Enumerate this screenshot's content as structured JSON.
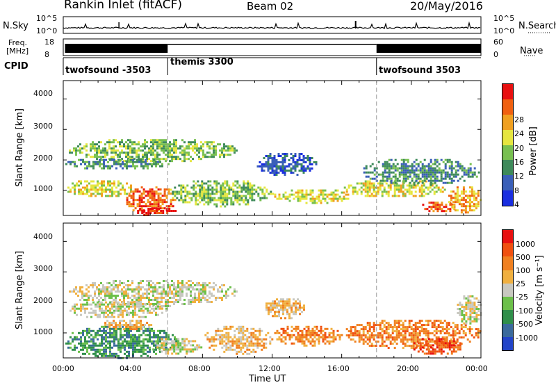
{
  "header": {
    "station": "Rankin Inlet (fitACF)",
    "beam": "Beam 02",
    "date": "20/May/2016"
  },
  "noise_panel": {
    "left_label": "N.Sky",
    "right_label": "N.Search",
    "left_ticks": [
      "10^5",
      "10^0"
    ],
    "right_ticks": [
      "10^5",
      "10^0"
    ]
  },
  "freq_panel": {
    "left_label_line1": "Freq.",
    "left_label_line2": "[MHz]",
    "right_label": "Nave",
    "left_ticks": [
      "18",
      "8"
    ],
    "right_ticks": [
      "60",
      "0"
    ]
  },
  "cpid_panel": {
    "label": "CPID",
    "segments": [
      {
        "name": "twofsound -3503",
        "start_hour": 0,
        "end_hour": 6
      },
      {
        "name": "themis 3300",
        "start_hour": 6,
        "end_hour": 18
      },
      {
        "name": "twofsound 3503",
        "start_hour": 18,
        "end_hour": 24
      }
    ]
  },
  "x_axis": {
    "label": "Time UT",
    "ticks": [
      "00:00",
      "04:00",
      "08:00",
      "12:00",
      "16:00",
      "20:00",
      "00:00"
    ]
  },
  "power_panel": {
    "ylabel": "Slant Range [km]",
    "yticks": [
      "4000",
      "3000",
      "2000",
      "1000"
    ],
    "colorbar_label": "Power [dB]",
    "colorbar_ticks": [
      "28",
      "24",
      "20",
      "16",
      "12",
      "8",
      "4"
    ]
  },
  "velocity_panel": {
    "ylabel": "Slant Range [km]",
    "yticks": [
      "4000",
      "3000",
      "2000",
      "1000"
    ],
    "colorbar_label": "Velocity [m s⁻¹]",
    "colorbar_ticks": [
      "1000",
      "500",
      "100",
      "25",
      "-25",
      "-100",
      "-500",
      "-1000"
    ]
  },
  "colors": {
    "power": [
      "#1a2ee0",
      "#3a5fb8",
      "#3e8a5a",
      "#78c050",
      "#e6e640",
      "#f0a020",
      "#f06010",
      "#e81010"
    ],
    "velocity": [
      "#2244c8",
      "#3a6a9c",
      "#2f8f4a",
      "#6cc04a",
      "#c8c8c0",
      "#f0b040",
      "#f08020",
      "#f05010",
      "#e81010"
    ]
  },
  "chart_data": {
    "type": "heatmap",
    "x_range_hours": [
      0,
      24
    ],
    "y_range_km": [
      180,
      4600
    ],
    "power_blobs": [
      {
        "h0": 0.2,
        "h1": 10.0,
        "r0": 1950,
        "r1": 2750,
        "level": 3
      },
      {
        "h0": 0.0,
        "h1": 6.0,
        "r0": 1700,
        "r1": 2100,
        "level": 2
      },
      {
        "h0": 0.0,
        "h1": 4.0,
        "r0": 800,
        "r1": 1400,
        "level": 4
      },
      {
        "h0": 3.5,
        "h1": 6.5,
        "r0": 250,
        "r1": 1200,
        "level": 6
      },
      {
        "h0": 4.0,
        "h1": 6.5,
        "r0": 200,
        "r1": 500,
        "level": 7
      },
      {
        "h0": 6.0,
        "h1": 12.0,
        "r0": 500,
        "r1": 1400,
        "level": 3
      },
      {
        "h0": 12.0,
        "h1": 16.5,
        "r0": 600,
        "r1": 1100,
        "level": 4
      },
      {
        "h0": 16.0,
        "h1": 22.0,
        "r0": 800,
        "r1": 1400,
        "level": 4
      },
      {
        "h0": 20.5,
        "h1": 22.5,
        "r0": 300,
        "r1": 700,
        "level": 6
      },
      {
        "h0": 22.0,
        "h1": 24.0,
        "r0": 300,
        "r1": 1200,
        "level": 5
      },
      {
        "h0": 11.0,
        "h1": 14.5,
        "r0": 1500,
        "r1": 2300,
        "level": 1
      },
      {
        "h0": 17.0,
        "h1": 24.0,
        "r0": 1200,
        "r1": 2100,
        "level": 2
      }
    ],
    "velocity_blobs": [
      {
        "h0": 0.2,
        "h1": 10.0,
        "r0": 1900,
        "r1": 2800,
        "level": 4
      },
      {
        "h0": 0.0,
        "h1": 6.0,
        "r0": 1500,
        "r1": 2100,
        "level": 4
      },
      {
        "h0": 0.0,
        "h1": 6.5,
        "r0": 200,
        "r1": 1300,
        "level": 2
      },
      {
        "h0": 2.0,
        "h1": 5.0,
        "r0": 1100,
        "r1": 1500,
        "level": 5
      },
      {
        "h0": 5.0,
        "h1": 8.0,
        "r0": 300,
        "r1": 900,
        "level": 4
      },
      {
        "h0": 8.0,
        "h1": 12.0,
        "r0": 300,
        "r1": 1300,
        "level": 5
      },
      {
        "h0": 12.0,
        "h1": 16.0,
        "r0": 600,
        "r1": 1300,
        "level": 6
      },
      {
        "h0": 16.0,
        "h1": 24.0,
        "r0": 500,
        "r1": 1500,
        "level": 6
      },
      {
        "h0": 20.0,
        "h1": 23.0,
        "r0": 300,
        "r1": 900,
        "level": 7
      },
      {
        "h0": 22.5,
        "h1": 24.0,
        "r0": 1300,
        "r1": 2300,
        "level": 4
      },
      {
        "h0": 11.5,
        "h1": 14.0,
        "r0": 1500,
        "r1": 2200,
        "level": 5
      }
    ]
  }
}
